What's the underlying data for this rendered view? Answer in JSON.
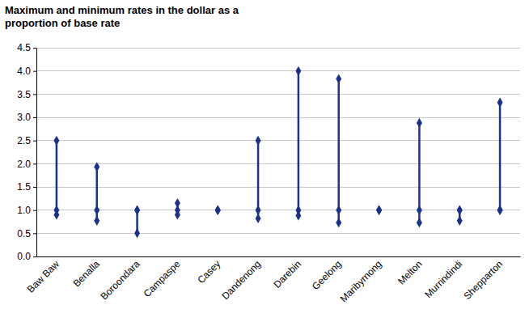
{
  "chart_data": {
    "type": "range",
    "title": "Maximum and minimum rates in the dollar as a proportion of base rate",
    "categories": [
      "Baw Baw",
      "Benalla",
      "Boroondara",
      "Campaspe",
      "Casey",
      "Dandenong",
      "Darebin",
      "Geelong",
      "Maribyrnong",
      "Melton",
      "Murrindindi",
      "Shepparton"
    ],
    "series": [
      {
        "color": "#1c318c",
        "marker": "diamond",
        "values": [
          2.5,
          1.93,
          1.0,
          1.15,
          1.0,
          2.5,
          4.0,
          3.83,
          1.0,
          2.88,
          1.0,
          3.32
        ]
      },
      {
        "color": "#1c318c",
        "marker": "diamond",
        "values": [
          1.0,
          1.0,
          1.0,
          1.0,
          1.0,
          1.0,
          1.0,
          1.0,
          1.0,
          1.0,
          1.0,
          1.0
        ]
      },
      {
        "color": "#1c318c",
        "marker": "diamond",
        "values": [
          0.9,
          0.77,
          0.5,
          0.9,
          1.0,
          0.82,
          0.88,
          0.73,
          1.0,
          0.73,
          0.77,
          1.0
        ]
      }
    ],
    "color": "#1c318c",
    "ylim": [
      0,
      4.5
    ],
    "yticks": [
      {
        "value": 0,
        "label": "0.0"
      },
      {
        "value": 0.5,
        "label": "0.5"
      },
      {
        "value": 1,
        "label": "1.0"
      },
      {
        "value": 1.5,
        "label": "1.5"
      },
      {
        "value": 2,
        "label": "2.0"
      },
      {
        "value": 2.5,
        "label": "2.5"
      },
      {
        "value": 3,
        "label": "3.0"
      },
      {
        "value": 3.5,
        "label": "3.5"
      },
      {
        "value": 4,
        "label": "4.0"
      },
      {
        "value": 4.5,
        "label": "4.5"
      }
    ],
    "grid": true
  }
}
